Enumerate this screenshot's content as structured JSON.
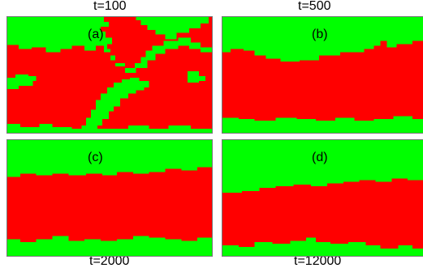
{
  "colors": {
    "phase_a": "#ff0000",
    "phase_b": "#00ff00",
    "border": "#777777"
  },
  "panels": [
    {
      "label": "(a)",
      "time": "t=100"
    },
    {
      "label": "(b)",
      "time": "t=500"
    },
    {
      "label": "(c)",
      "time": "t=2000"
    },
    {
      "label": "(d)",
      "time": "t=12000"
    }
  ]
}
